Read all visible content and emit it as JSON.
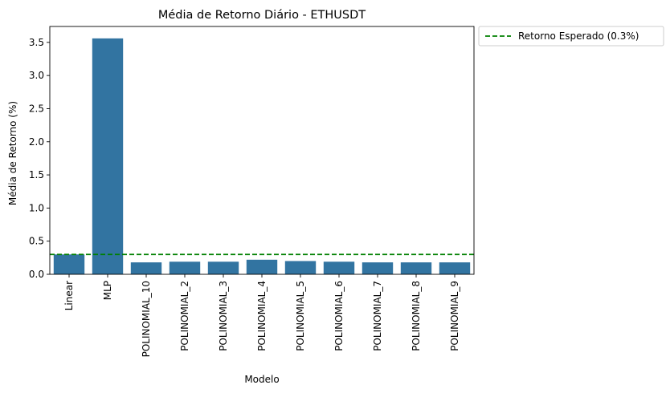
{
  "chart_data": {
    "type": "bar",
    "title": "Média de Retorno Diário - ETHUSDT",
    "xlabel": "Modelo",
    "ylabel": "Média de Retorno (%)",
    "categories": [
      "Linear",
      "MLP",
      "POLINOMIAL_10",
      "POLINOMIAL_2",
      "POLINOMIAL_3",
      "POLINOMIAL_4",
      "POLINOMIAL_5",
      "POLINOMIAL_6",
      "POLINOMIAL_7",
      "POLINOMIAL_8",
      "POLINOMIAL_9"
    ],
    "values": [
      0.3,
      3.56,
      0.18,
      0.19,
      0.19,
      0.22,
      0.2,
      0.19,
      0.18,
      0.18,
      0.18
    ],
    "ylim": [
      0,
      3.74
    ],
    "yticks": [
      0.0,
      0.5,
      1.0,
      1.5,
      2.0,
      2.5,
      3.0,
      3.5
    ],
    "ytick_labels": [
      "0.0",
      "0.5",
      "1.0",
      "1.5",
      "2.0",
      "2.5",
      "3.0",
      "3.5"
    ],
    "bar_color": "#3274a1",
    "grid": false,
    "reference_line": {
      "value": 0.3,
      "label": "Retorno Esperado (0.3%)",
      "color": "#008000",
      "style": "dashed"
    },
    "legend": {
      "placement": "outside-top-right",
      "entries": [
        "Retorno Esperado (0.3%)"
      ]
    }
  }
}
